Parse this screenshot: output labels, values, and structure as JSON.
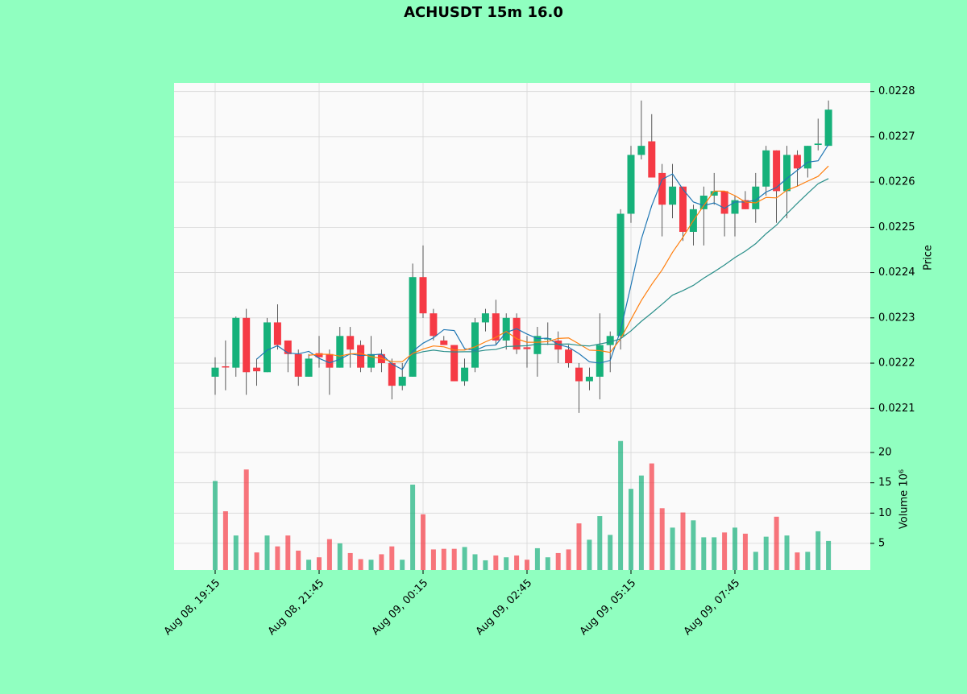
{
  "chart_data": {
    "type": "candlestick",
    "title": "ACHUSDT 15m 16.0",
    "ylabel": "Price",
    "volume_label": "Volume  10⁶",
    "categories": [
      "Aug 08, 19:15",
      null,
      null,
      null,
      null,
      null,
      null,
      null,
      null,
      null,
      "Aug 08, 21:45",
      null,
      null,
      null,
      null,
      null,
      null,
      null,
      null,
      null,
      "Aug 09, 00:15",
      null,
      null,
      null,
      null,
      null,
      null,
      null,
      null,
      null,
      "Aug 09, 02:45",
      null,
      null,
      null,
      null,
      null,
      null,
      null,
      null,
      null,
      "Aug 09, 05:15",
      null,
      null,
      null,
      null,
      null,
      null,
      null,
      null,
      null,
      "Aug 09, 07:45",
      null,
      null,
      null,
      null,
      null,
      null,
      null,
      null,
      null
    ],
    "open": [
      0.02217,
      0.022193,
      0.02219,
      0.0223,
      0.02219,
      0.02218,
      0.02229,
      0.02225,
      0.02222,
      0.02217,
      0.022222,
      0.02222,
      0.02219,
      0.02226,
      0.02224,
      0.02219,
      0.02222,
      0.0222,
      0.02215,
      0.02217,
      0.02239,
      0.02231,
      0.02225,
      0.02224,
      0.02216,
      0.02219,
      0.02229,
      0.02231,
      0.02225,
      0.0223,
      0.022235,
      0.02222,
      0.022253,
      0.02225,
      0.02223,
      0.02219,
      0.02216,
      0.02217,
      0.02224,
      0.02226,
      0.02253,
      0.02266,
      0.02269,
      0.02262,
      0.02255,
      0.02259,
      0.02249,
      0.02254,
      0.02257,
      0.02258,
      0.02253,
      0.02256,
      0.02254,
      0.02259,
      0.02267,
      0.02258,
      0.02266,
      0.02263,
      0.022682,
      0.02268
    ],
    "high": [
      0.022213,
      0.02225,
      0.022303,
      0.02232,
      0.02221,
      0.0223,
      0.02233,
      0.02225,
      0.02223,
      0.02222,
      0.02226,
      0.02223,
      0.02228,
      0.02228,
      0.02225,
      0.02226,
      0.02223,
      0.02221,
      0.0222,
      0.02242,
      0.02246,
      0.02232,
      0.02226,
      0.02224,
      0.02221,
      0.0223,
      0.02232,
      0.02234,
      0.02231,
      0.02231,
      0.02226,
      0.02228,
      0.02229,
      0.02227,
      0.02224,
      0.0222,
      0.02219,
      0.02231,
      0.02227,
      0.02254,
      0.02268,
      0.02278,
      0.02275,
      0.02264,
      0.02264,
      0.02259,
      0.02255,
      0.02259,
      0.02262,
      0.02258,
      0.02257,
      0.02258,
      0.02262,
      0.02268,
      0.02267,
      0.02268,
      0.02267,
      0.02268,
      0.02274,
      0.02278
    ],
    "low": [
      0.02213,
      0.02214,
      0.02217,
      0.02213,
      0.02215,
      0.02218,
      0.02223,
      0.02218,
      0.02215,
      0.02217,
      0.02219,
      0.02213,
      0.02219,
      0.02219,
      0.02218,
      0.02218,
      0.02218,
      0.02212,
      0.02214,
      0.02217,
      0.0223,
      0.02225,
      0.02224,
      0.02216,
      0.02215,
      0.02218,
      0.02227,
      0.02224,
      0.02223,
      0.02222,
      0.02219,
      0.02217,
      0.02224,
      0.0222,
      0.02219,
      0.02209,
      0.02214,
      0.02212,
      0.02218,
      0.02223,
      0.02251,
      0.02265,
      0.02261,
      0.02248,
      0.02252,
      0.02247,
      0.02246,
      0.02246,
      0.02255,
      0.02248,
      0.02248,
      0.02254,
      0.02251,
      0.02257,
      0.02251,
      0.02252,
      0.02259,
      0.02261,
      0.02267,
      0.02268
    ],
    "close": [
      0.02219,
      0.022192,
      0.0223,
      0.02218,
      0.022182,
      0.02229,
      0.02224,
      0.02222,
      0.02217,
      0.02221,
      0.022213,
      0.02219,
      0.02226,
      0.02223,
      0.02219,
      0.02222,
      0.0222,
      0.02215,
      0.02217,
      0.02239,
      0.02231,
      0.02226,
      0.02224,
      0.02216,
      0.02219,
      0.02229,
      0.02231,
      0.02225,
      0.0223,
      0.02223,
      0.022231,
      0.02226,
      0.022255,
      0.02223,
      0.0222,
      0.02216,
      0.02217,
      0.02224,
      0.02226,
      0.02253,
      0.02266,
      0.02268,
      0.02261,
      0.02255,
      0.02259,
      0.02249,
      0.02254,
      0.02257,
      0.02258,
      0.02253,
      0.02256,
      0.02254,
      0.02259,
      0.02267,
      0.02258,
      0.02266,
      0.02263,
      0.02268,
      0.022685,
      0.02276
    ],
    "volume": [
      15.3,
      10.3,
      6.3,
      17.2,
      3.5,
      6.3,
      4.5,
      6.3,
      3.8,
      2.3,
      2.7,
      5.7,
      5.0,
      3.4,
      2.4,
      2.3,
      3.2,
      4.5,
      2.3,
      14.7,
      9.8,
      4.0,
      4.1,
      4.1,
      4.4,
      3.2,
      2.2,
      3.0,
      2.7,
      3.0,
      2.3,
      4.2,
      2.7,
      3.4,
      4.0,
      8.3,
      5.6,
      9.5,
      6.4,
      21.9,
      14.0,
      16.2,
      18.2,
      10.8,
      7.6,
      10.1,
      8.8,
      6.0,
      6.0,
      6.8,
      7.6,
      6.6,
      3.6,
      6.1,
      9.4,
      6.3,
      3.5,
      3.6,
      7.0,
      5.4
    ],
    "up_color": "#16b17a",
    "down_color": "#f53a45",
    "mav": [
      5,
      10,
      20
    ],
    "mav_colors": [
      "#1f77b4",
      "#ff7f0e",
      "#2a8f8a"
    ],
    "ylim": [
      0.02204,
      0.022819
    ],
    "yticks": [
      0.0221,
      0.0222,
      0.0223,
      0.0224,
      0.0225,
      0.0226,
      0.0227,
      0.0228
    ],
    "y2lim": [
      0.6,
      22.8
    ],
    "y2ticks": [
      5,
      10,
      15,
      20
    ],
    "grid": true
  }
}
